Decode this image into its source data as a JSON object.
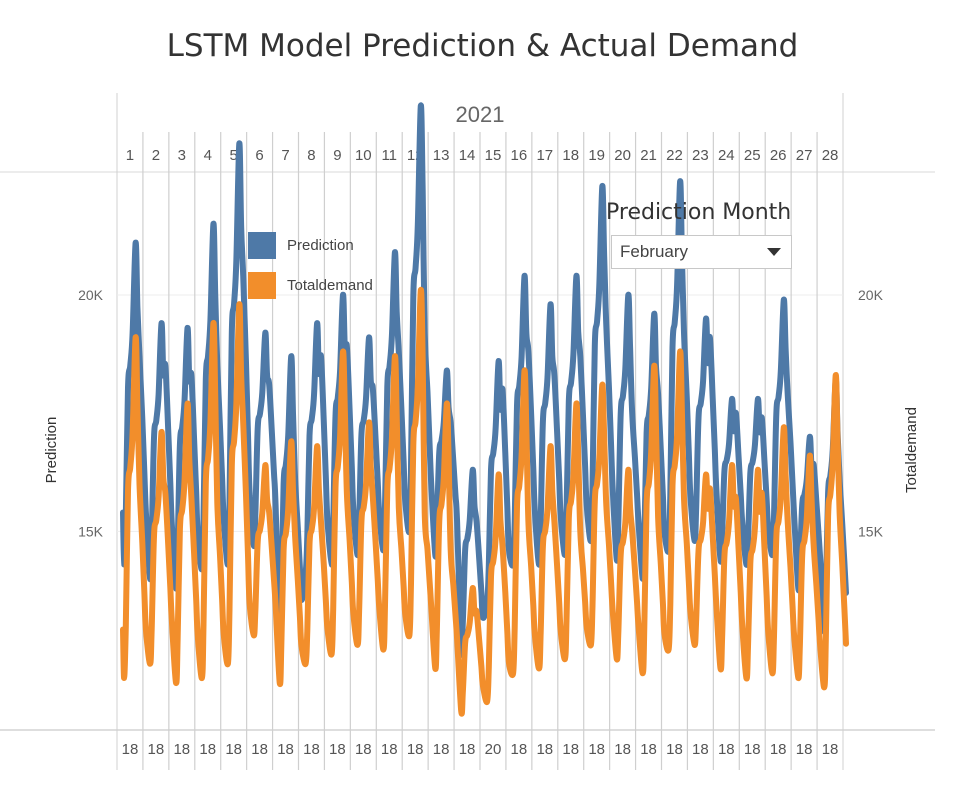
{
  "title": "LSTM Model Prediction & Actual Demand",
  "filter": {
    "title": "Prediction Month",
    "selected": "February"
  },
  "chart_data": {
    "type": "line",
    "year_label": "2021",
    "days": [
      "1",
      "2",
      "3",
      "4",
      "5",
      "6",
      "7",
      "8",
      "9",
      "10",
      "11",
      "12",
      "13",
      "14",
      "15",
      "16",
      "17",
      "18",
      "19",
      "20",
      "21",
      "22",
      "23",
      "24",
      "25",
      "26",
      "27",
      "28"
    ],
    "bottom_labels": [
      "18",
      "18",
      "18",
      "18",
      "18",
      "18",
      "18",
      "18",
      "18",
      "18",
      "18",
      "18",
      "18",
      "18",
      "20",
      "18",
      "18",
      "18",
      "18",
      "18",
      "18",
      "18",
      "18",
      "18",
      "18",
      "18",
      "18",
      "18"
    ],
    "y_left_label": "Prediction",
    "y_right_label": "Totaldemand",
    "y_ticks": [
      {
        "value": 15000,
        "label": "15K"
      },
      {
        "value": 20000,
        "label": "20K"
      }
    ],
    "ylim": [
      10800,
      22600
    ],
    "legend": [
      "Prediction",
      "Totaldemand"
    ],
    "colors": {
      "prediction": "#4e79a7",
      "totaldemand": "#f28e2b"
    },
    "series": [
      {
        "name": "Prediction",
        "daily": [
          {
            "min": 14300,
            "peak": 21100,
            "evening": 18700
          },
          {
            "min": 14000,
            "peak": 19400,
            "evening": 18500
          },
          {
            "min": 13800,
            "peak": 19300,
            "evening": 18300
          },
          {
            "min": 14200,
            "peak": 21500,
            "evening": 18500
          },
          {
            "min": 14300,
            "peak": 23200,
            "evening": 20400
          },
          {
            "min": 14700,
            "peak": 19200,
            "evening": 18100
          },
          {
            "min": 12700,
            "peak": 18700,
            "evening": 16100
          },
          {
            "min": 14100,
            "peak": 19400,
            "evening": 18700
          },
          {
            "min": 14300,
            "peak": 20000,
            "evening": 18900
          },
          {
            "min": 14500,
            "peak": 19100,
            "evening": 18000
          },
          {
            "min": 14600,
            "peak": 20900,
            "evening": 18800
          },
          {
            "min": 15000,
            "peak": 24000,
            "evening": 19200
          },
          {
            "min": 14500,
            "peak": 18400,
            "evening": 17300
          },
          {
            "min": 12500,
            "peak": 16300,
            "evening": 15200
          },
          {
            "min": 13500,
            "peak": 18600,
            "evening": 18000
          },
          {
            "min": 14300,
            "peak": 20400,
            "evening": 18800
          },
          {
            "min": 14300,
            "peak": 19800,
            "evening": 18300
          },
          {
            "min": 14500,
            "peak": 20400,
            "evening": 18700
          },
          {
            "min": 14800,
            "peak": 22300,
            "evening": 19400
          },
          {
            "min": 14400,
            "peak": 20000,
            "evening": 17500
          },
          {
            "min": 14000,
            "peak": 19600,
            "evening": 17900
          },
          {
            "min": 14600,
            "peak": 22400,
            "evening": 19200
          },
          {
            "min": 14800,
            "peak": 19500,
            "evening": 19100
          },
          {
            "min": 14400,
            "peak": 17800,
            "evening": 17500
          },
          {
            "min": 14300,
            "peak": 17800,
            "evening": 17400
          },
          {
            "min": 14500,
            "peak": 19900,
            "evening": 17900
          },
          {
            "min": 13800,
            "peak": 17000,
            "evening": 16400
          },
          {
            "min": 12900,
            "peak": 18200,
            "evening": 16100
          }
        ]
      },
      {
        "name": "Totaldemand",
        "daily": [
          {
            "min": 11900,
            "peak": 19100,
            "evening": 16000
          },
          {
            "min": 12200,
            "peak": 17100,
            "evening": 15800
          },
          {
            "min": 11800,
            "peak": 17700,
            "evening": 15700
          },
          {
            "min": 11900,
            "peak": 19400,
            "evening": 15600
          },
          {
            "min": 12200,
            "peak": 19800,
            "evening": 17300
          },
          {
            "min": 12800,
            "peak": 16400,
            "evening": 15400
          },
          {
            "min": 11800,
            "peak": 16900,
            "evening": 14900
          },
          {
            "min": 12200,
            "peak": 16800,
            "evening": 15200
          },
          {
            "min": 12400,
            "peak": 18800,
            "evening": 15800
          },
          {
            "min": 12600,
            "peak": 17300,
            "evening": 15700
          },
          {
            "min": 12500,
            "peak": 18700,
            "evening": 15500
          },
          {
            "min": 12800,
            "peak": 20100,
            "evening": 15400
          },
          {
            "min": 12100,
            "peak": 17700,
            "evening": 14600
          },
          {
            "min": 11200,
            "peak": 13800,
            "evening": 13300
          },
          {
            "min": 11400,
            "peak": 16200,
            "evening": 14700
          },
          {
            "min": 12000,
            "peak": 18400,
            "evening": 15200
          },
          {
            "min": 12100,
            "peak": 16800,
            "evening": 15200
          },
          {
            "min": 12300,
            "peak": 17700,
            "evening": 15000
          },
          {
            "min": 12600,
            "peak": 18100,
            "evening": 15600
          },
          {
            "min": 12300,
            "peak": 16300,
            "evening": 15000
          },
          {
            "min": 12000,
            "peak": 18500,
            "evening": 15300
          },
          {
            "min": 12500,
            "peak": 18800,
            "evening": 15700
          },
          {
            "min": 12600,
            "peak": 16200,
            "evening": 15900
          },
          {
            "min": 12100,
            "peak": 16400,
            "evening": 15700
          },
          {
            "min": 11900,
            "peak": 16300,
            "evening": 15800
          },
          {
            "min": 12000,
            "peak": 17200,
            "evening": 15200
          },
          {
            "min": 11900,
            "peak": 16600,
            "evening": 14700
          },
          {
            "min": 11700,
            "peak": 18300,
            "evening": 15400
          }
        ]
      }
    ]
  }
}
